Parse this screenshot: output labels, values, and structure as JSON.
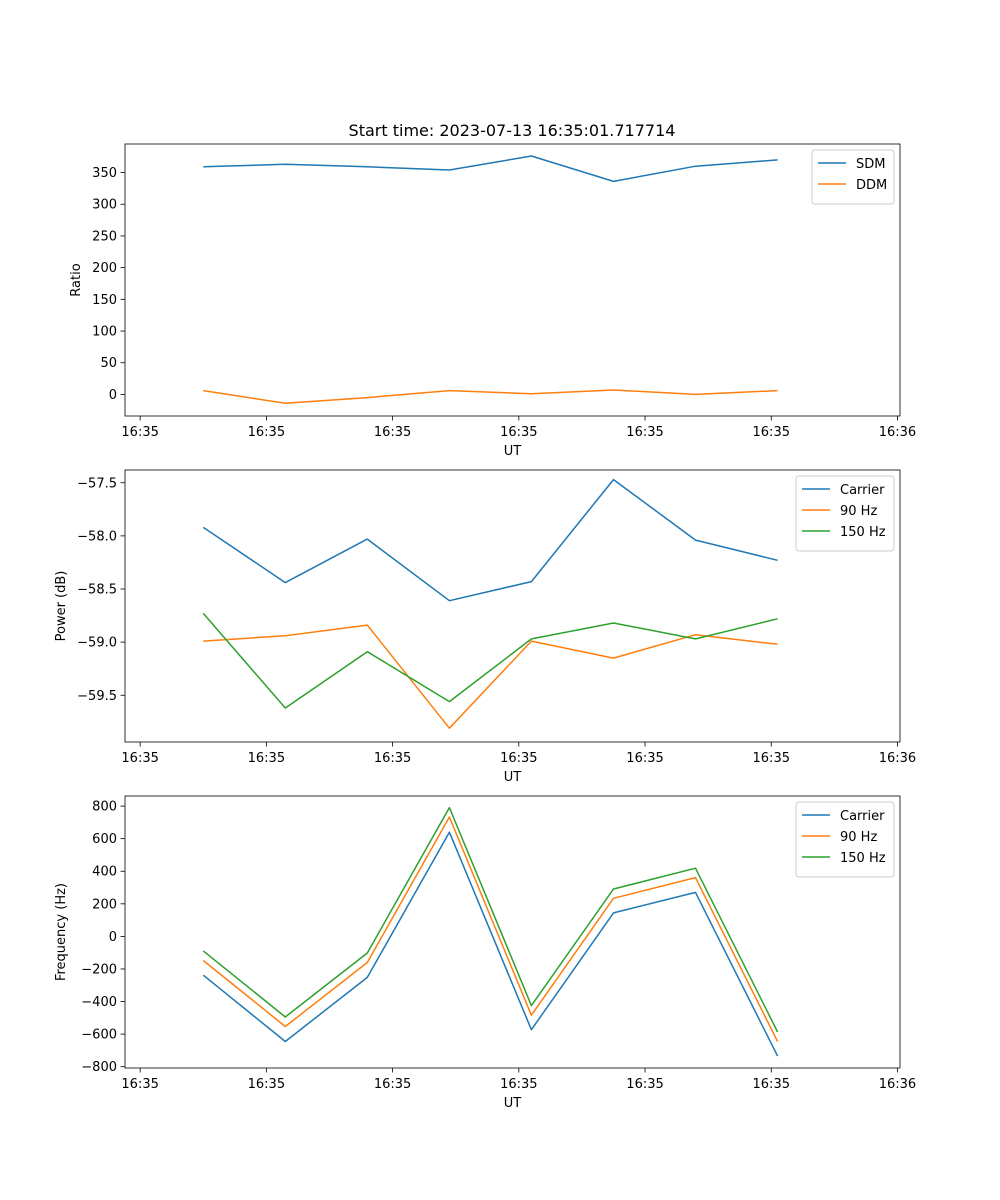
{
  "figure_title": "Start time: 2023-07-13 16:35:01.717714",
  "chart_data": [
    {
      "type": "line",
      "title": "Start time: 2023-07-13 16:35:01.717714",
      "xlabel": "UT",
      "ylabel": "Ratio",
      "x_tick_labels": [
        "16:35",
        "16:35",
        "16:35",
        "16:35",
        "16:35",
        "16:35",
        "16:36"
      ],
      "x_tick_positions": [
        0,
        1,
        2,
        3,
        4,
        5,
        6
      ],
      "x": [
        0.5,
        1.15,
        1.8,
        2.45,
        3.1,
        3.75,
        4.4,
        5.05
      ],
      "xlim": [
        -0.12,
        6.02
      ],
      "ylim": [
        -34,
        395
      ],
      "yticks": [
        0,
        50,
        100,
        150,
        200,
        250,
        300,
        350
      ],
      "legend_loc": "upper right",
      "series": [
        {
          "name": "SDM",
          "color": "#1f77b4",
          "values": [
            359,
            363,
            359,
            354,
            376,
            336,
            360,
            370
          ]
        },
        {
          "name": "DDM",
          "color": "#ff7f0e",
          "values": [
            6,
            -14,
            -5,
            6,
            1,
            7,
            0,
            6
          ]
        }
      ]
    },
    {
      "type": "line",
      "xlabel": "UT",
      "ylabel": "Power (dB)",
      "x_tick_labels": [
        "16:35",
        "16:35",
        "16:35",
        "16:35",
        "16:35",
        "16:35",
        "16:36"
      ],
      "x_tick_positions": [
        0,
        1,
        2,
        3,
        4,
        5,
        6
      ],
      "x": [
        0.5,
        1.15,
        1.8,
        2.45,
        3.1,
        3.75,
        4.4,
        5.05
      ],
      "xlim": [
        -0.12,
        6.02
      ],
      "ylim": [
        -59.94,
        -57.38
      ],
      "yticks": [
        -59.5,
        -59.0,
        -58.5,
        -58.0,
        -57.5
      ],
      "ytick_labels": [
        "−59.5",
        "−59.0",
        "−58.5",
        "−58.0",
        "−57.5"
      ],
      "legend_loc": "upper right",
      "series": [
        {
          "name": "Carrier",
          "color": "#1f77b4",
          "values": [
            -57.92,
            -58.44,
            -58.03,
            -58.61,
            -58.43,
            -57.47,
            -58.04,
            -58.23
          ]
        },
        {
          "name": "90 Hz",
          "color": "#ff7f0e",
          "values": [
            -58.99,
            -58.94,
            -58.84,
            -59.81,
            -58.99,
            -59.15,
            -58.93,
            -59.02
          ]
        },
        {
          "name": "150 Hz",
          "color": "#2ca02c",
          "values": [
            -58.73,
            -59.62,
            -59.09,
            -59.56,
            -58.97,
            -58.82,
            -58.97,
            -58.78
          ]
        }
      ]
    },
    {
      "type": "line",
      "xlabel": "UT",
      "ylabel": "Frequency (Hz)",
      "x_tick_labels": [
        "16:35",
        "16:35",
        "16:35",
        "16:35",
        "16:35",
        "16:35",
        "16:36"
      ],
      "x_tick_positions": [
        0,
        1,
        2,
        3,
        4,
        5,
        6
      ],
      "x": [
        0.5,
        1.15,
        1.8,
        2.45,
        3.1,
        3.75,
        4.4,
        5.05
      ],
      "xlim": [
        -0.12,
        6.02
      ],
      "ylim": [
        -808,
        862
      ],
      "yticks": [
        -800,
        -600,
        -400,
        -200,
        0,
        200,
        400,
        600,
        800
      ],
      "ytick_labels": [
        "−800",
        "−600",
        "−400",
        "−200",
        "0",
        "200",
        "400",
        "600",
        "800"
      ],
      "legend_loc": "upper right",
      "series": [
        {
          "name": "Carrier",
          "color": "#1f77b4",
          "values": [
            -238,
            -645,
            -252,
            640,
            -573,
            144,
            270,
            -735
          ]
        },
        {
          "name": "90 Hz",
          "color": "#ff7f0e",
          "values": [
            -148,
            -553,
            -160,
            733,
            -484,
            234,
            361,
            -645
          ]
        },
        {
          "name": "150 Hz",
          "color": "#2ca02c",
          "values": [
            -89,
            -495,
            -102,
            791,
            -425,
            291,
            419,
            -587
          ]
        }
      ]
    }
  ]
}
